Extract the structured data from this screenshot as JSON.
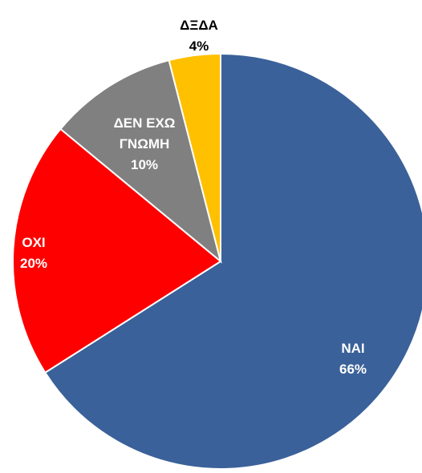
{
  "chart_data": {
    "type": "pie",
    "categories": [
      "ΝΑΙ",
      "ΟΧΙ",
      "ΔΕΝ ΕΧΩ ΓΝΩΜΗ",
      "ΔΞΔΑ"
    ],
    "values": [
      66,
      20,
      10,
      4
    ],
    "value_labels": [
      "66%",
      "20%",
      "10%",
      "4%"
    ],
    "colors": [
      "#3a6199",
      "#ff0000",
      "#808080",
      "#ffc000"
    ]
  }
}
